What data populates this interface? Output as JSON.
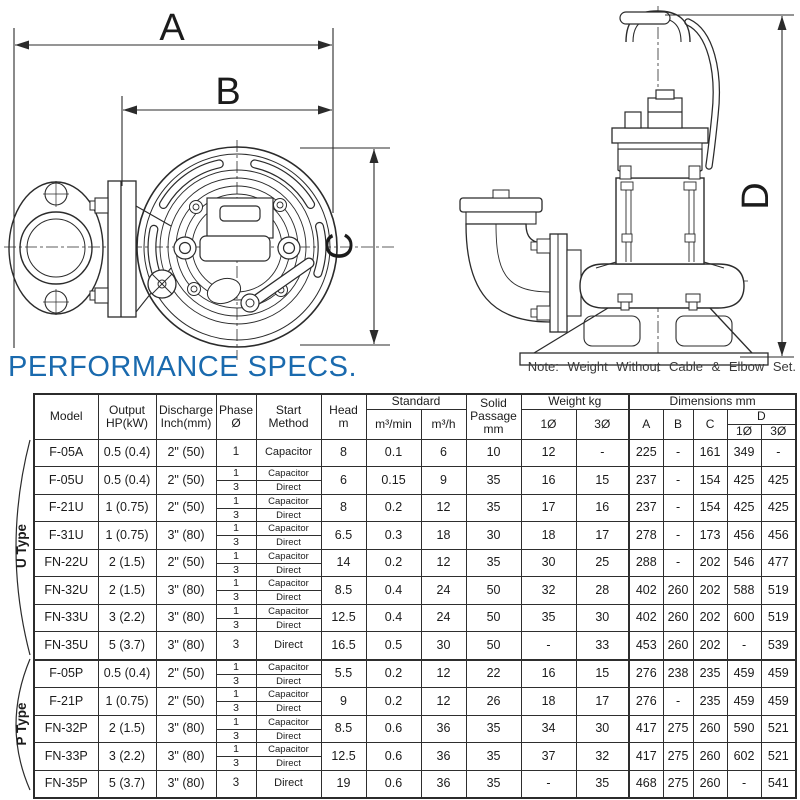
{
  "title": "PERFORMANCE SPECS.",
  "note": "Note: Weight Without Cable & Elbow Set.",
  "drawing": {
    "labels": {
      "a": "A",
      "b": "B",
      "c": "C",
      "d": "D"
    }
  },
  "table": {
    "headers": {
      "model": "Model",
      "output_l1": "Output",
      "output_l2": "HP(kW)",
      "discharge_l1": "Discharge",
      "discharge_l2": "Inch(mm)",
      "phase_l1": "Phase",
      "phase_l2": "Ø",
      "start_l1": "Start",
      "start_l2": "Method",
      "head_l1": "Head",
      "head_l2": "m",
      "standard": "Standard",
      "std_min": "m³/min",
      "std_h": "m³/h",
      "solid_l1": "Solid",
      "solid_l2": "Passage",
      "solid_l3": "mm",
      "weight": "Weight kg",
      "w1": "1Ø",
      "w3": "3Ø",
      "dims": "Dimensions mm",
      "dim_a": "A",
      "dim_b": "B",
      "dim_c": "C",
      "dim_d": "D",
      "d1": "1Ø",
      "d3": "3Ø"
    },
    "groups": [
      {
        "label": "U Type",
        "rows": [
          {
            "model": "F-05A",
            "output": "0.5 (0.4)",
            "discharge": "2\" (50)",
            "phase": [
              "1"
            ],
            "start": [
              "Capacitor"
            ],
            "head": "8",
            "m3min": "0.1",
            "m3h": "6",
            "solid": "10",
            "w1": "12",
            "w3": "-",
            "A": "225",
            "B": "-",
            "C": "161",
            "D1": "349",
            "D3": "-"
          },
          {
            "model": "F-05U",
            "output": "0.5 (0.4)",
            "discharge": "2\" (50)",
            "phase": [
              "1",
              "3"
            ],
            "start": [
              "Capacitor",
              "Direct"
            ],
            "head": "6",
            "m3min": "0.15",
            "m3h": "9",
            "solid": "35",
            "w1": "16",
            "w3": "15",
            "A": "237",
            "B": "-",
            "C": "154",
            "D1": "425",
            "D3": "425"
          },
          {
            "model": "F-21U",
            "output": "1 (0.75)",
            "discharge": "2\" (50)",
            "phase": [
              "1",
              "3"
            ],
            "start": [
              "Capacitor",
              "Direct"
            ],
            "head": "8",
            "m3min": "0.2",
            "m3h": "12",
            "solid": "35",
            "w1": "17",
            "w3": "16",
            "A": "237",
            "B": "-",
            "C": "154",
            "D1": "425",
            "D3": "425"
          },
          {
            "model": "F-31U",
            "output": "1 (0.75)",
            "discharge": "3\" (80)",
            "phase": [
              "1",
              "3"
            ],
            "start": [
              "Capacitor",
              "Direct"
            ],
            "head": "6.5",
            "m3min": "0.3",
            "m3h": "18",
            "solid": "30",
            "w1": "18",
            "w3": "17",
            "A": "278",
            "B": "-",
            "C": "173",
            "D1": "456",
            "D3": "456"
          },
          {
            "model": "FN-22U",
            "output": "2 (1.5)",
            "discharge": "2\" (50)",
            "phase": [
              "1",
              "3"
            ],
            "start": [
              "Capacitor",
              "Direct"
            ],
            "head": "14",
            "m3min": "0.2",
            "m3h": "12",
            "solid": "35",
            "w1": "30",
            "w3": "25",
            "A": "288",
            "B": "-",
            "C": "202",
            "D1": "546",
            "D3": "477"
          },
          {
            "model": "FN-32U",
            "output": "2 (1.5)",
            "discharge": "3\" (80)",
            "phase": [
              "1",
              "3"
            ],
            "start": [
              "Capacitor",
              "Direct"
            ],
            "head": "8.5",
            "m3min": "0.4",
            "m3h": "24",
            "solid": "50",
            "w1": "32",
            "w3": "28",
            "A": "402",
            "B": "260",
            "C": "202",
            "D1": "588",
            "D3": "519"
          },
          {
            "model": "FN-33U",
            "output": "3 (2.2)",
            "discharge": "3\" (80)",
            "phase": [
              "1",
              "3"
            ],
            "start": [
              "Capacitor",
              "Direct"
            ],
            "head": "12.5",
            "m3min": "0.4",
            "m3h": "24",
            "solid": "50",
            "w1": "35",
            "w3": "30",
            "A": "402",
            "B": "260",
            "C": "202",
            "D1": "600",
            "D3": "519"
          },
          {
            "model": "FN-35U",
            "output": "5 (3.7)",
            "discharge": "3\" (80)",
            "phase": [
              "3"
            ],
            "start": [
              "Direct"
            ],
            "head": "16.5",
            "m3min": "0.5",
            "m3h": "30",
            "solid": "50",
            "w1": "-",
            "w3": "33",
            "A": "453",
            "B": "260",
            "C": "202",
            "D1": "-",
            "D3": "539"
          }
        ]
      },
      {
        "label": "P Type",
        "rows": [
          {
            "model": "F-05P",
            "output": "0.5 (0.4)",
            "discharge": "2\" (50)",
            "phase": [
              "1",
              "3"
            ],
            "start": [
              "Capacitor",
              "Direct"
            ],
            "head": "5.5",
            "m3min": "0.2",
            "m3h": "12",
            "solid": "22",
            "w1": "16",
            "w3": "15",
            "A": "276",
            "B": "238",
            "C": "235",
            "D1": "459",
            "D3": "459"
          },
          {
            "model": "F-21P",
            "output": "1 (0.75)",
            "discharge": "2\" (50)",
            "phase": [
              "1",
              "3"
            ],
            "start": [
              "Capacitor",
              "Direct"
            ],
            "head": "9",
            "m3min": "0.2",
            "m3h": "12",
            "solid": "26",
            "w1": "18",
            "w3": "17",
            "A": "276",
            "B": "-",
            "C": "235",
            "D1": "459",
            "D3": "459"
          },
          {
            "model": "FN-32P",
            "output": "2 (1.5)",
            "discharge": "3\" (80)",
            "phase": [
              "1",
              "3"
            ],
            "start": [
              "Capacitor",
              "Direct"
            ],
            "head": "8.5",
            "m3min": "0.6",
            "m3h": "36",
            "solid": "35",
            "w1": "34",
            "w3": "30",
            "A": "417",
            "B": "275",
            "C": "260",
            "D1": "590",
            "D3": "521"
          },
          {
            "model": "FN-33P",
            "output": "3 (2.2)",
            "discharge": "3\" (80)",
            "phase": [
              "1",
              "3"
            ],
            "start": [
              "Capacitor",
              "Direct"
            ],
            "head": "12.5",
            "m3min": "0.6",
            "m3h": "36",
            "solid": "35",
            "w1": "37",
            "w3": "32",
            "A": "417",
            "B": "275",
            "C": "260",
            "D1": "602",
            "D3": "521"
          },
          {
            "model": "FN-35P",
            "output": "5 (3.7)",
            "discharge": "3\" (80)",
            "phase": [
              "3"
            ],
            "start": [
              "Direct"
            ],
            "head": "19",
            "m3min": "0.6",
            "m3h": "36",
            "solid": "35",
            "w1": "-",
            "w3": "35",
            "A": "468",
            "B": "275",
            "C": "260",
            "D1": "-",
            "D3": "541"
          }
        ]
      }
    ]
  }
}
